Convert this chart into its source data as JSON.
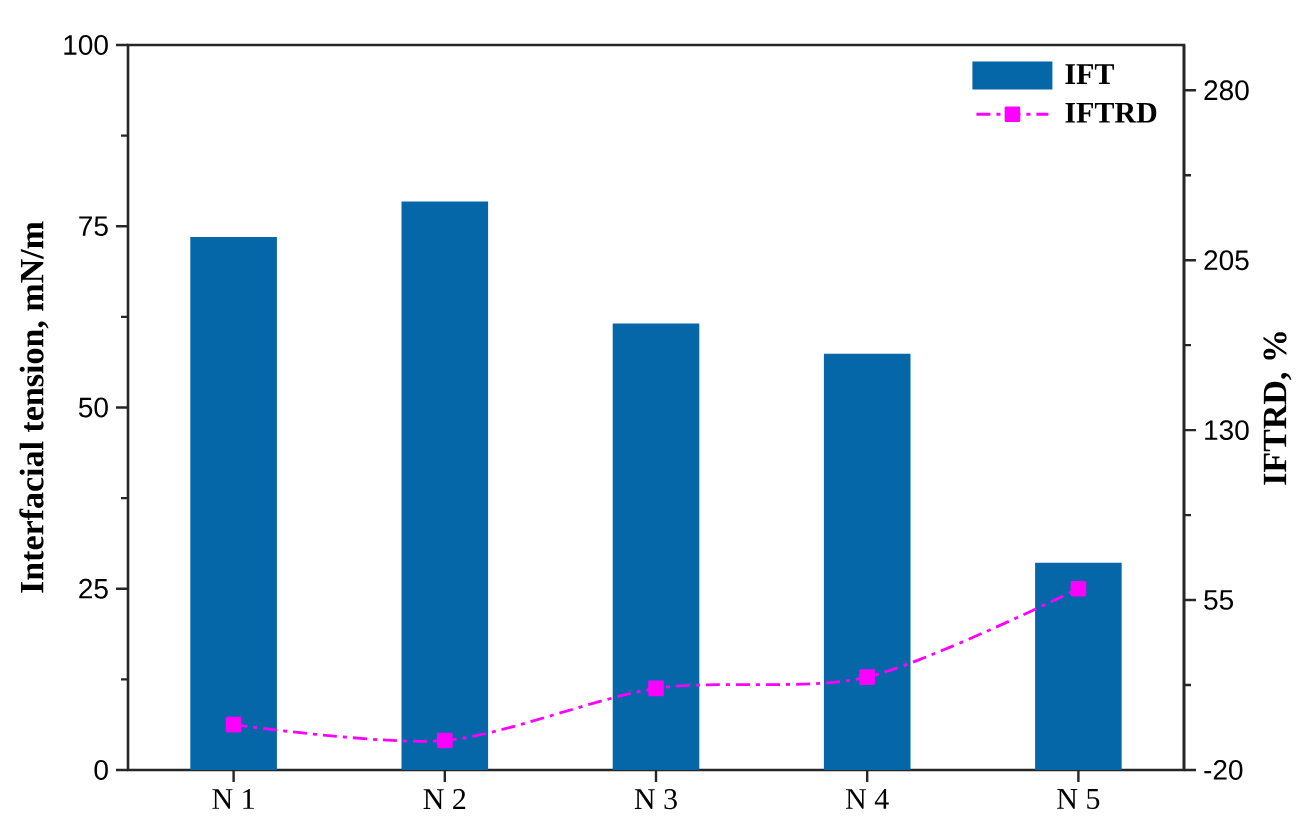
{
  "chart_data": {
    "type": "bar",
    "categories": [
      "N 1",
      "N 2",
      "N 3",
      "N 4",
      "N 5"
    ],
    "series": [
      {
        "name": "IFT",
        "color": "#0566a8",
        "values": [
          73.5,
          78.4,
          61.6,
          57.4,
          28.6
        ]
      },
      {
        "name": "IFTRD",
        "type": "line",
        "axis": "y2",
        "color": "#ff00ff",
        "marker": "square",
        "line_style": "dashdot",
        "values": [
          0,
          -7,
          16,
          21,
          60
        ]
      }
    ],
    "ylabel": "Interfacial tension, mN/m",
    "y2label": "IFTRD, %",
    "ylim": [
      0,
      100
    ],
    "yticks": [
      0,
      {
        "value": 12.5,
        "label": null
      },
      25,
      {
        "value": 37.5,
        "label": null
      },
      50,
      {
        "value": 62.5,
        "label": null
      },
      75,
      {
        "value": 87.5,
        "label": null
      },
      100
    ],
    "y2lim": [
      -20,
      300
    ],
    "y2ticks": [
      -20,
      {
        "value": 17.5,
        "label": null
      },
      55,
      {
        "value": 92.5,
        "label": null
      },
      130,
      {
        "value": 167.5,
        "label": null
      },
      205,
      {
        "value": 242.5,
        "label": null
      },
      280
    ],
    "legend": "top right"
  }
}
